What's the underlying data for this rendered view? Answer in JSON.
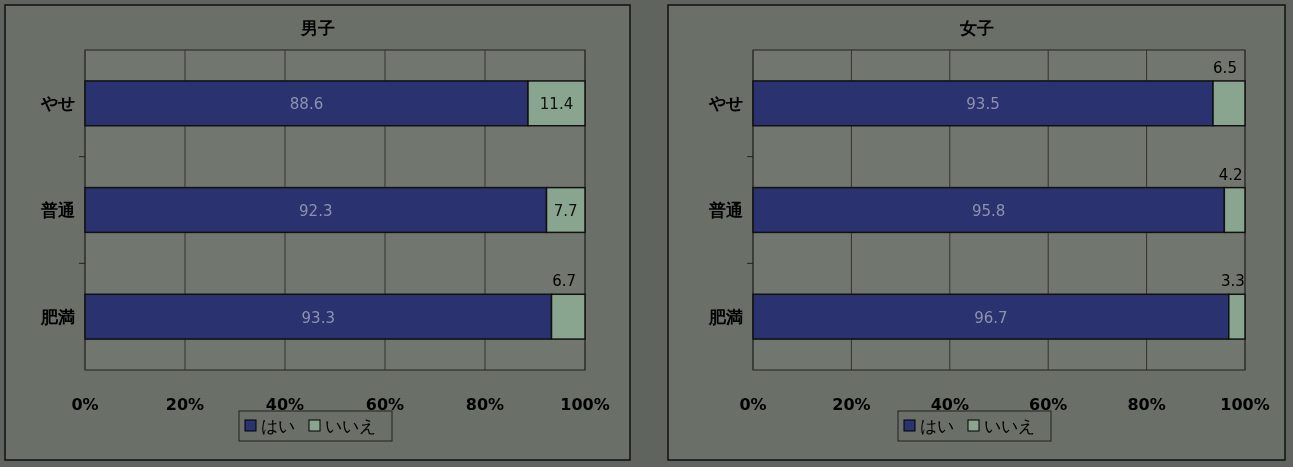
{
  "chart_data": [
    {
      "type": "bar",
      "orientation": "horizontal",
      "stacked": true,
      "title": "男子",
      "categories": [
        "やせ",
        "普通",
        "肥満"
      ],
      "series": [
        {
          "name": "はい",
          "color": "#2b3270",
          "values": [
            88.6,
            92.3,
            93.3
          ]
        },
        {
          "name": "いいえ",
          "color": "#8aa58f",
          "values": [
            11.4,
            7.7,
            6.7
          ]
        }
      ],
      "xlim": [
        0,
        100
      ],
      "xticks": [
        {
          "value": 0,
          "label": "0%"
        },
        {
          "value": 20,
          "label": "20%"
        },
        {
          "value": 40,
          "label": "40%"
        },
        {
          "value": 60,
          "label": "60%"
        },
        {
          "value": 80,
          "label": "80%"
        },
        {
          "value": 100,
          "label": "100%"
        }
      ],
      "grid": "x",
      "legend": "bottom",
      "data_labels": true
    },
    {
      "type": "bar",
      "orientation": "horizontal",
      "stacked": true,
      "title": "女子",
      "categories": [
        "やせ",
        "普通",
        "肥満"
      ],
      "series": [
        {
          "name": "はい",
          "color": "#2b3270",
          "values": [
            93.5,
            95.8,
            96.7
          ]
        },
        {
          "name": "いいえ",
          "color": "#8aa58f",
          "values": [
            6.5,
            4.2,
            3.3
          ]
        }
      ],
      "xlim": [
        0,
        100
      ],
      "xticks": [
        {
          "value": 0,
          "label": "0%"
        },
        {
          "value": 20,
          "label": "20%"
        },
        {
          "value": 40,
          "label": "40%"
        },
        {
          "value": 60,
          "label": "60%"
        },
        {
          "value": 80,
          "label": "80%"
        },
        {
          "value": 100,
          "label": "100%"
        }
      ],
      "grid": "x",
      "legend": "bottom",
      "data_labels": true
    }
  ]
}
